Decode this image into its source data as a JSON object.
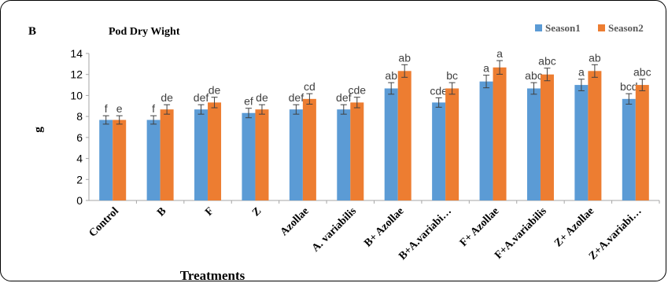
{
  "panel_label": "B",
  "chart_data": {
    "type": "bar",
    "title": "Pod Dry Wight",
    "xlabel": "Treatments",
    "ylabel": "g",
    "ylim": [
      0,
      14
    ],
    "yticks": [
      0,
      2,
      4,
      6,
      8,
      10,
      12,
      14
    ],
    "grid": false,
    "legend_position": "top-right",
    "categories": [
      "Control",
      "B",
      "F",
      "Z",
      "Azollae",
      "A. variabilis",
      "B+ Azollae",
      "B+A.variabi…",
      "F+ Azollae",
      "F+A.variabilis",
      "Z+ Azollae",
      "Z+A.variabi…"
    ],
    "series": [
      {
        "name": "Season1",
        "color": "#5B9BD5",
        "values": [
          7.67,
          7.67,
          8.67,
          8.33,
          8.67,
          8.67,
          10.67,
          9.33,
          11.33,
          10.67,
          11.0,
          9.67
        ],
        "errors": [
          0.4,
          0.4,
          0.45,
          0.45,
          0.45,
          0.45,
          0.55,
          0.45,
          0.6,
          0.55,
          0.55,
          0.5
        ],
        "labels": [
          "f",
          "f",
          "def",
          "ef",
          "def",
          "def",
          "ab",
          "cde",
          "a",
          "abc",
          "a",
          "bcd"
        ]
      },
      {
        "name": "Season2",
        "color": "#ED7D31",
        "values": [
          7.67,
          8.67,
          9.33,
          8.67,
          9.67,
          9.33,
          12.33,
          10.67,
          12.67,
          12.0,
          12.33,
          11.0
        ],
        "errors": [
          0.4,
          0.45,
          0.5,
          0.45,
          0.5,
          0.5,
          0.6,
          0.55,
          0.65,
          0.6,
          0.6,
          0.55
        ],
        "labels": [
          "e",
          "de",
          "de",
          "de",
          "cd",
          "cde",
          "ab",
          "bc",
          "a",
          "abc",
          "ab",
          "abc"
        ]
      }
    ]
  }
}
